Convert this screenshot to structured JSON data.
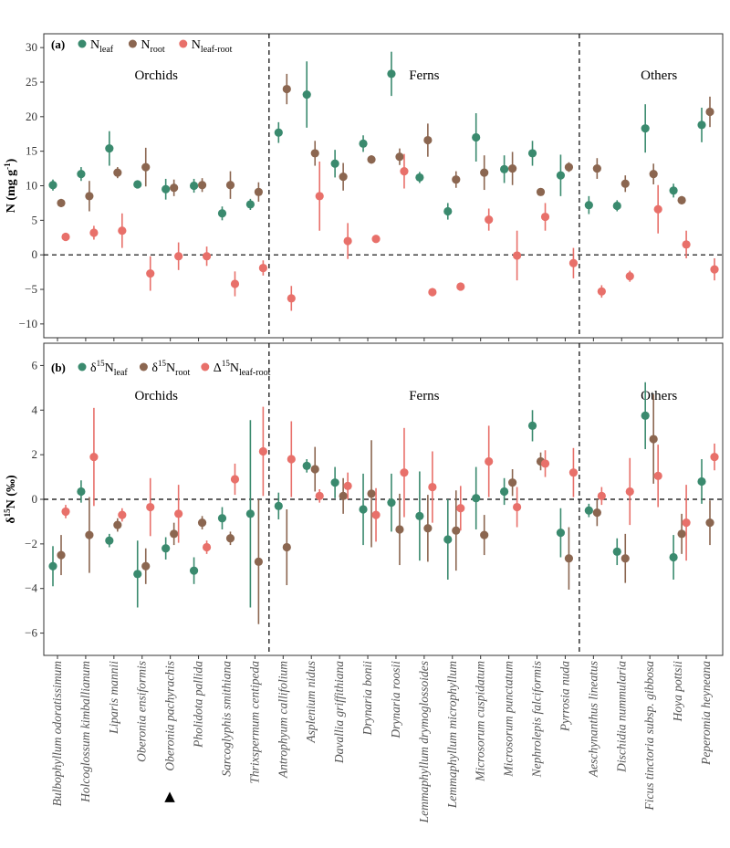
{
  "colors": {
    "leaf": "#3a8a6e",
    "root": "#8b6650",
    "diff": "#e8706a",
    "panel_border": "#333333"
  },
  "species": [
    "Bulbophyllum odoratissimum",
    "Holcoglossum kimballianum",
    "Liparis mannii",
    "Oberonia ensiformis",
    "Oberonia pachyrachis",
    "Pholidota pallida",
    "Sarcoglyphis smithiana",
    "Thrixspermum centipeda",
    "Antrophyum callifolium",
    "Asplenium nidus",
    "Davallia griffithiana",
    "Drynaria bonii",
    "Drynaria roosii",
    "Lemmaphyllum drymoglossoides",
    "Lemmaphyllum microphyllum",
    "Microsorum cuspidatum",
    "Microsorum punctatum",
    "Nephrolepis falciformis",
    "Pyrrosia nuda",
    "Aeschynanthus lineatus",
    "Dischidia nummularia",
    "Ficus tinctoria subsp. gibbosa",
    "Hoya pottsii",
    "Peperomia heyneana"
  ],
  "marked_species_symbol": "▲",
  "groups": [
    {
      "label": "Orchids",
      "start": 0,
      "end": 7
    },
    {
      "label": "Ferns",
      "start": 8,
      "end": 18
    },
    {
      "label": "Others",
      "start": 19,
      "end": 23
    }
  ],
  "chart_data": [
    {
      "type": "scatter",
      "panel": "(a)",
      "ylabel": "N (mg g -1)",
      "ylim": [
        -12,
        32
      ],
      "yticks": [
        -10,
        -5,
        0,
        5,
        10,
        15,
        20,
        25,
        30
      ],
      "hline": 0,
      "legend": [
        {
          "base": "N",
          "sub": "leaf",
          "key": "leaf"
        },
        {
          "base": "N",
          "sub": "root",
          "key": "root"
        },
        {
          "base": "N",
          "sub": "leaf-root",
          "key": "diff"
        }
      ],
      "series": [
        {
          "key": "leaf",
          "values": [
            10.1,
            11.7,
            15.4,
            10.2,
            9.5,
            10.0,
            6.0,
            7.3,
            17.7,
            23.2,
            13.2,
            16.1,
            26.2,
            11.2,
            6.3,
            17.0,
            12.4,
            14.7,
            11.5,
            7.2,
            7.1,
            18.3,
            9.3,
            18.8
          ],
          "err": [
            0.8,
            1.0,
            2.5,
            0.6,
            1.5,
            1.0,
            1.0,
            0.8,
            1.5,
            4.8,
            2.0,
            1.2,
            3.2,
            0.8,
            1.2,
            3.5,
            2.0,
            1.8,
            3.0,
            1.3,
            0.8,
            3.5,
            1.0,
            2.5
          ]
        },
        {
          "key": "root",
          "values": [
            7.5,
            8.5,
            11.9,
            12.7,
            9.7,
            10.1,
            10.1,
            9.1,
            24.0,
            14.7,
            11.3,
            13.8,
            14.2,
            16.6,
            10.9,
            11.9,
            12.5,
            9.1,
            12.7,
            12.5,
            10.3,
            11.7,
            7.9,
            20.7
          ],
          "err": [
            0.6,
            2.2,
            0.8,
            2.8,
            1.2,
            1.0,
            2.0,
            1.4,
            2.2,
            1.8,
            2.0,
            0.6,
            1.2,
            2.4,
            1.2,
            2.5,
            2.4,
            0.4,
            0.7,
            1.5,
            1.2,
            1.5,
            0.6,
            2.2
          ]
        },
        {
          "key": "diff",
          "values": [
            2.6,
            3.2,
            3.5,
            -2.7,
            -0.2,
            -0.2,
            -4.2,
            -1.9,
            -6.3,
            8.5,
            2.0,
            2.3,
            12.1,
            -5.4,
            -4.6,
            5.1,
            -0.1,
            5.5,
            -1.2,
            -5.3,
            -3.1,
            6.6,
            1.5,
            -2.1
          ],
          "err": [
            0.6,
            1.0,
            2.5,
            2.5,
            2.0,
            1.4,
            1.8,
            1.1,
            1.8,
            5.0,
            2.6,
            0.4,
            2.5,
            0.6,
            0.4,
            1.6,
            3.6,
            2.0,
            2.2,
            0.9,
            0.8,
            3.5,
            2.0,
            1.6
          ]
        }
      ]
    },
    {
      "type": "scatter",
      "panel": "(b)",
      "ylabel": "δ15N (‰)",
      "ylim": [
        -7,
        7
      ],
      "yticks": [
        -6,
        -4,
        -2,
        0,
        2,
        4,
        6
      ],
      "hline": 0,
      "legend": [
        {
          "base": "δ",
          "sup": "15",
          "rest": "N",
          "sub": "leaf",
          "key": "leaf"
        },
        {
          "base": "δ",
          "sup": "15",
          "rest": "N",
          "sub": "root",
          "key": "root"
        },
        {
          "base": "Δ",
          "sup": "15",
          "rest": "N",
          "sub": "leaf-root",
          "key": "diff"
        }
      ],
      "series": [
        {
          "key": "leaf",
          "values": [
            -3.0,
            0.35,
            -1.85,
            -3.35,
            -2.2,
            -3.2,
            -0.85,
            -0.65,
            -0.3,
            1.5,
            0.75,
            -0.45,
            -0.15,
            -0.75,
            -1.8,
            0.05,
            0.35,
            3.3,
            -1.5,
            -0.5,
            -2.35,
            3.75,
            -2.6,
            0.8
          ],
          "err": [
            0.9,
            0.5,
            0.3,
            1.5,
            0.5,
            0.6,
            0.5,
            4.2,
            0.6,
            0.3,
            0.7,
            1.6,
            1.3,
            2.0,
            1.8,
            1.4,
            0.6,
            0.7,
            1.1,
            0.3,
            0.6,
            1.5,
            1.0,
            1.0
          ]
        },
        {
          "key": "root",
          "values": [
            -2.5,
            -1.6,
            -1.15,
            -3.0,
            -1.55,
            -1.05,
            -1.75,
            -2.8,
            -2.15,
            1.35,
            0.15,
            0.25,
            -1.35,
            -1.3,
            -1.4,
            -1.6,
            0.75,
            1.7,
            -2.65,
            -0.6,
            -2.65,
            2.7,
            -1.55,
            -1.05
          ],
          "err": [
            0.9,
            1.7,
            0.3,
            0.8,
            0.5,
            0.3,
            0.3,
            2.8,
            1.7,
            1.0,
            0.8,
            2.4,
            1.6,
            1.5,
            1.8,
            0.9,
            0.6,
            0.4,
            1.4,
            0.6,
            1.1,
            2.0,
            0.9,
            1.0
          ]
        },
        {
          "key": "diff",
          "values": [
            -0.55,
            1.9,
            -0.7,
            -0.35,
            -0.65,
            -2.15,
            0.9,
            2.15,
            1.8,
            0.15,
            0.6,
            -0.7,
            1.2,
            0.55,
            -0.4,
            1.7,
            -0.35,
            1.6,
            1.2,
            0.15,
            0.35,
            1.05,
            -1.05,
            1.9
          ],
          "err": [
            0.3,
            2.2,
            0.3,
            1.3,
            1.3,
            0.3,
            0.7,
            2.0,
            1.7,
            0.3,
            0.6,
            1.2,
            2.0,
            1.6,
            1.0,
            1.6,
            0.9,
            0.6,
            1.1,
            0.4,
            1.5,
            1.4,
            1.7,
            0.6
          ]
        }
      ]
    }
  ]
}
